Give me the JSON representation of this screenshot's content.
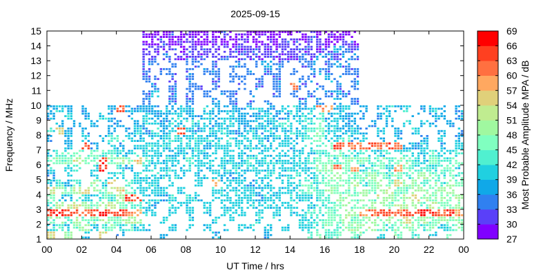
{
  "chart_data": {
    "type": "heatmap",
    "title": "2025-09-15",
    "xlabel": "UT Time / hrs",
    "ylabel": "Frequency / MHz",
    "xlim": [
      0,
      24
    ],
    "ylim": [
      1,
      15
    ],
    "x_ticks": [
      "00",
      "02",
      "04",
      "06",
      "08",
      "10",
      "12",
      "14",
      "16",
      "18",
      "20",
      "22",
      "00"
    ],
    "y_ticks": [
      "1",
      "2",
      "3",
      "4",
      "5",
      "6",
      "7",
      "8",
      "9",
      "10",
      "11",
      "12",
      "13",
      "14",
      "15"
    ],
    "colorbar": {
      "label": "Most Probable Amplitude MPA / dB",
      "range": [
        27,
        69
      ],
      "ticks": [
        "27",
        "30",
        "33",
        "36",
        "39",
        "42",
        "45",
        "48",
        "51",
        "54",
        "57",
        "60",
        "63",
        "66",
        "69"
      ],
      "colors": [
        "#8000ff",
        "#5a40f8",
        "#3080f0",
        "#10a8e8",
        "#20d0e0",
        "#50f0d0",
        "#80ffc0",
        "#a0f8a0",
        "#c0ec90",
        "#e0d07a",
        "#ffa860",
        "#ff7040",
        "#ff4020",
        "#ff0000"
      ]
    },
    "grid_note_levels": "a=27-30 b=30-33 c=33-36 d=36-39 e=39-42 f=42-45 g=45-48 h=48-51 i=51-54 j=54-57 k=57-60 l=60-63 m=63-66 n=66-69 .=none",
    "time_step_hrs": 0.5,
    "freq_step_mhz": 0.5,
    "rows_from_15MHz_down": [
      "...........aaabaaaaabaaaaaaaaabaaaaa............",
      "...........aabaabaabaabaaaabbabbaabb............",
      "...........bbbbabbbbbbbbbbbbbbbbbdcb............",
      "...........bbcbbbbbbcbbbbbbbbcbdcbdc............",
      "...........cc.c.cc.c.cc.cdcc.cc.cdc.............",
      "...........c.cc.c.cc.c.c.cc.c.cdc.cc............",
      "...........cc.c.c..c.cc.c.c..cc.dc.c............",
      "............c.c.cc.c..c.c.c.lc.c.c.c............",
      "...........ce.c.c.c.cc.c..c.c.c.cdc.............",
      "...........c..c.c..d.c.c.c...c.c.d.c............",
      "ded.d..dmddddeded.eddedeeddeedelkde.d.dede.ded.d",
      "d.e.d.ed.d.eddeeddedeedddeddeeefdeddd.de..d.dd.d",
      ".d.d.d.dd.deedeefeedeeddeeefeefgeedd.d.d.e.ed.d.",
      "fjd.d..d.dededemedeeeddededeeefgeeded.e.d.e..d.d",
      "d.d.e.dffedeeefeeeeeeeeeedeedefgeefde.d.e..d.e.d",
      "..d.md.ed.eeeeeeeedeeeeeeeeedeefgmlllmlmldde.d.e",
      "effgfgffeefeeedeeeeeeeeeeeeeeeeffgfefeefefeefeef",
      "gggiggmghgjfeeeefeeeeeefeeeeeefggfgggfgfggfegffg",
      "e.ef.em.ed.eeeeeeeeeeeeeeeeeeeeghlgkefgekgffefge",
      "d.e..e.ee.eeeeee.eeeede.eeeeeeefghggghgfgfghgfgf",
      "efdf.hej.feee.e..e.keeedee.eefffggghfghgjghfgfhg",
      "ihgijhgijgeeee.e.e.eeeeedeeeefgfhggghghigghhghh",
      "geefeeffhmleede.ee.eeeeedee.eeeffhhghgihghjhghgh",
      "fhijhghiggfed.eee.e.eeeeeeeee.effghgghhgihhgiggh",
      "mnmmlmnmmlkee.e.e.e.eee.e.e.eeffgghhklmmlmmnmlmk",
      "ghfhgghgghh..e..e..e.e..e.e..eefgghgghghgjghghgh",
      "efeghefgefee..e.e.e.e.ee.e.e.eefgfghghgfghgfgefg",
      "j.h.e.j.d....d.....d.....d....fgfg.gg.e.g.f.e.g."
    ]
  }
}
